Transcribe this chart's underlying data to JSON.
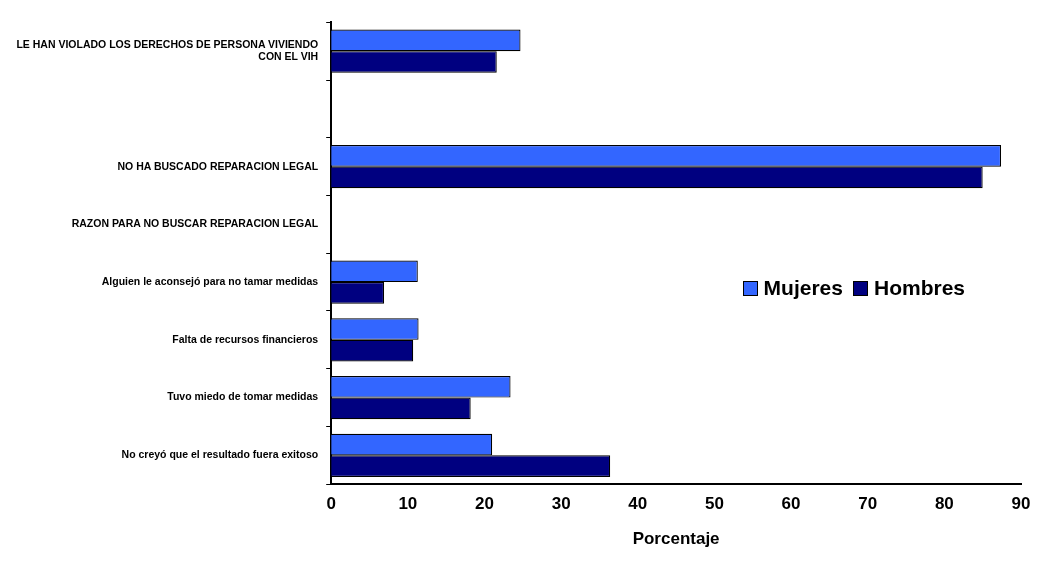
{
  "chart_data": {
    "type": "bar",
    "orientation": "horizontal",
    "xlabel": "Porcentaje",
    "categories": [
      "LE HAN VIOLADO LOS DERECHOS DE PERSONA VIVIENDO CON EL VIH",
      null,
      "NO HA BUSCADO REPARACION LEGAL",
      "RAZON PARA NO BUSCAR REPARACION LEGAL",
      "Alguien le aconsejó para no tamar medidas",
      "Falta de recursos financieros",
      "Tuvo miedo de tomar medidas",
      "No creyó que el resultado fuera exitoso"
    ],
    "series": [
      {
        "name": "Mujeres",
        "color": "#3366ff",
        "values": [
          24.7,
          null,
          87.4,
          null,
          11.3,
          11.4,
          23.4,
          21.0
        ]
      },
      {
        "name": "Hombres",
        "color": "#000080",
        "values": [
          21.6,
          null,
          85.0,
          null,
          6.9,
          10.7,
          18.2,
          36.4
        ]
      }
    ],
    "xlim": [
      0,
      90
    ],
    "xticks": [
      0,
      10,
      20,
      30,
      40,
      50,
      60,
      70,
      80,
      90
    ],
    "grid": false,
    "legend": "right"
  }
}
